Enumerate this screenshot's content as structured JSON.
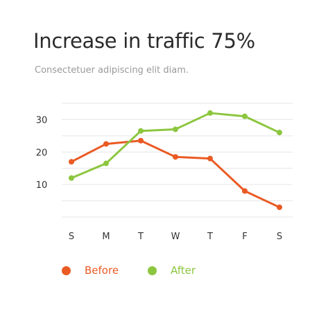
{
  "header": {
    "title": "Increase in traffic 75%",
    "subtitle": "Consectetuer adipiscing elit diam."
  },
  "colors": {
    "before": "#ea5a23",
    "after": "#8cc63f",
    "grid": "#e6e6e6",
    "tick": "#333333"
  },
  "chart_data": {
    "type": "line",
    "title": "Increase in traffic 75%",
    "subtitle": "Consectetuer adipiscing elit diam.",
    "categories": [
      "S",
      "M",
      "T",
      "W",
      "T",
      "F",
      "S"
    ],
    "y_ticks": [
      10,
      20,
      30
    ],
    "ylim": [
      0,
      35
    ],
    "grid": true,
    "legend_position": "bottom-left",
    "series": [
      {
        "name": "Before",
        "color": "#ea5a23",
        "values": [
          17,
          22.5,
          23.5,
          18.5,
          18,
          8,
          3
        ]
      },
      {
        "name": "After",
        "color": "#8cc63f",
        "values": [
          12,
          16.5,
          26.5,
          27,
          32,
          31,
          26
        ]
      }
    ]
  },
  "legend": {
    "items": [
      {
        "label": "Before",
        "color": "#ea5a23"
      },
      {
        "label": "After",
        "color": "#8cc63f"
      }
    ]
  }
}
